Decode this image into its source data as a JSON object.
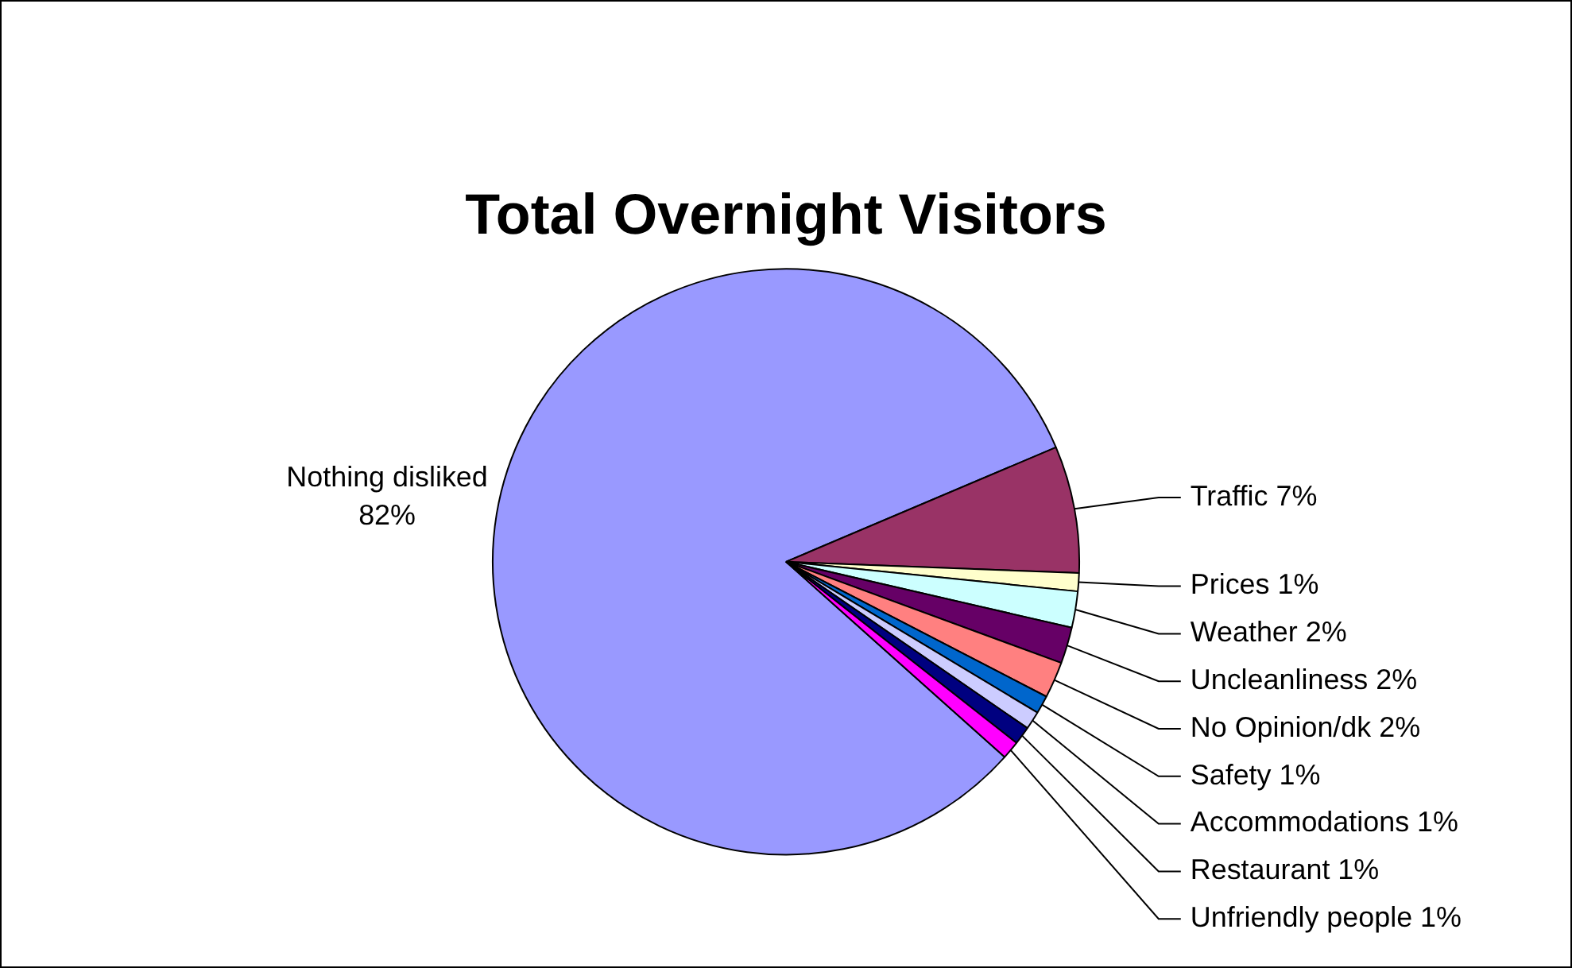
{
  "chart_data": {
    "type": "pie",
    "title": "Total Overnight Visitors",
    "categories": [
      "Nothing disliked",
      "Traffic",
      "Prices",
      "Weather",
      "Uncleanliness",
      "No Opinion/dk",
      "Safety",
      "Accommodations",
      "Restaurant",
      "Unfriendly people"
    ],
    "values": [
      82,
      7,
      1,
      2,
      2,
      2,
      1,
      1,
      1,
      1
    ],
    "value_labels": [
      "82%",
      "7%",
      "1%",
      "2%",
      "2%",
      "2%",
      "1%",
      "1%",
      "1%",
      "1%"
    ],
    "colors": [
      "#9999ff",
      "#993366",
      "#ffffcc",
      "#ccffff",
      "#660066",
      "#ff8080",
      "#0066cc",
      "#ccccff",
      "#000080",
      "#ff00ff"
    ],
    "legend": false
  }
}
